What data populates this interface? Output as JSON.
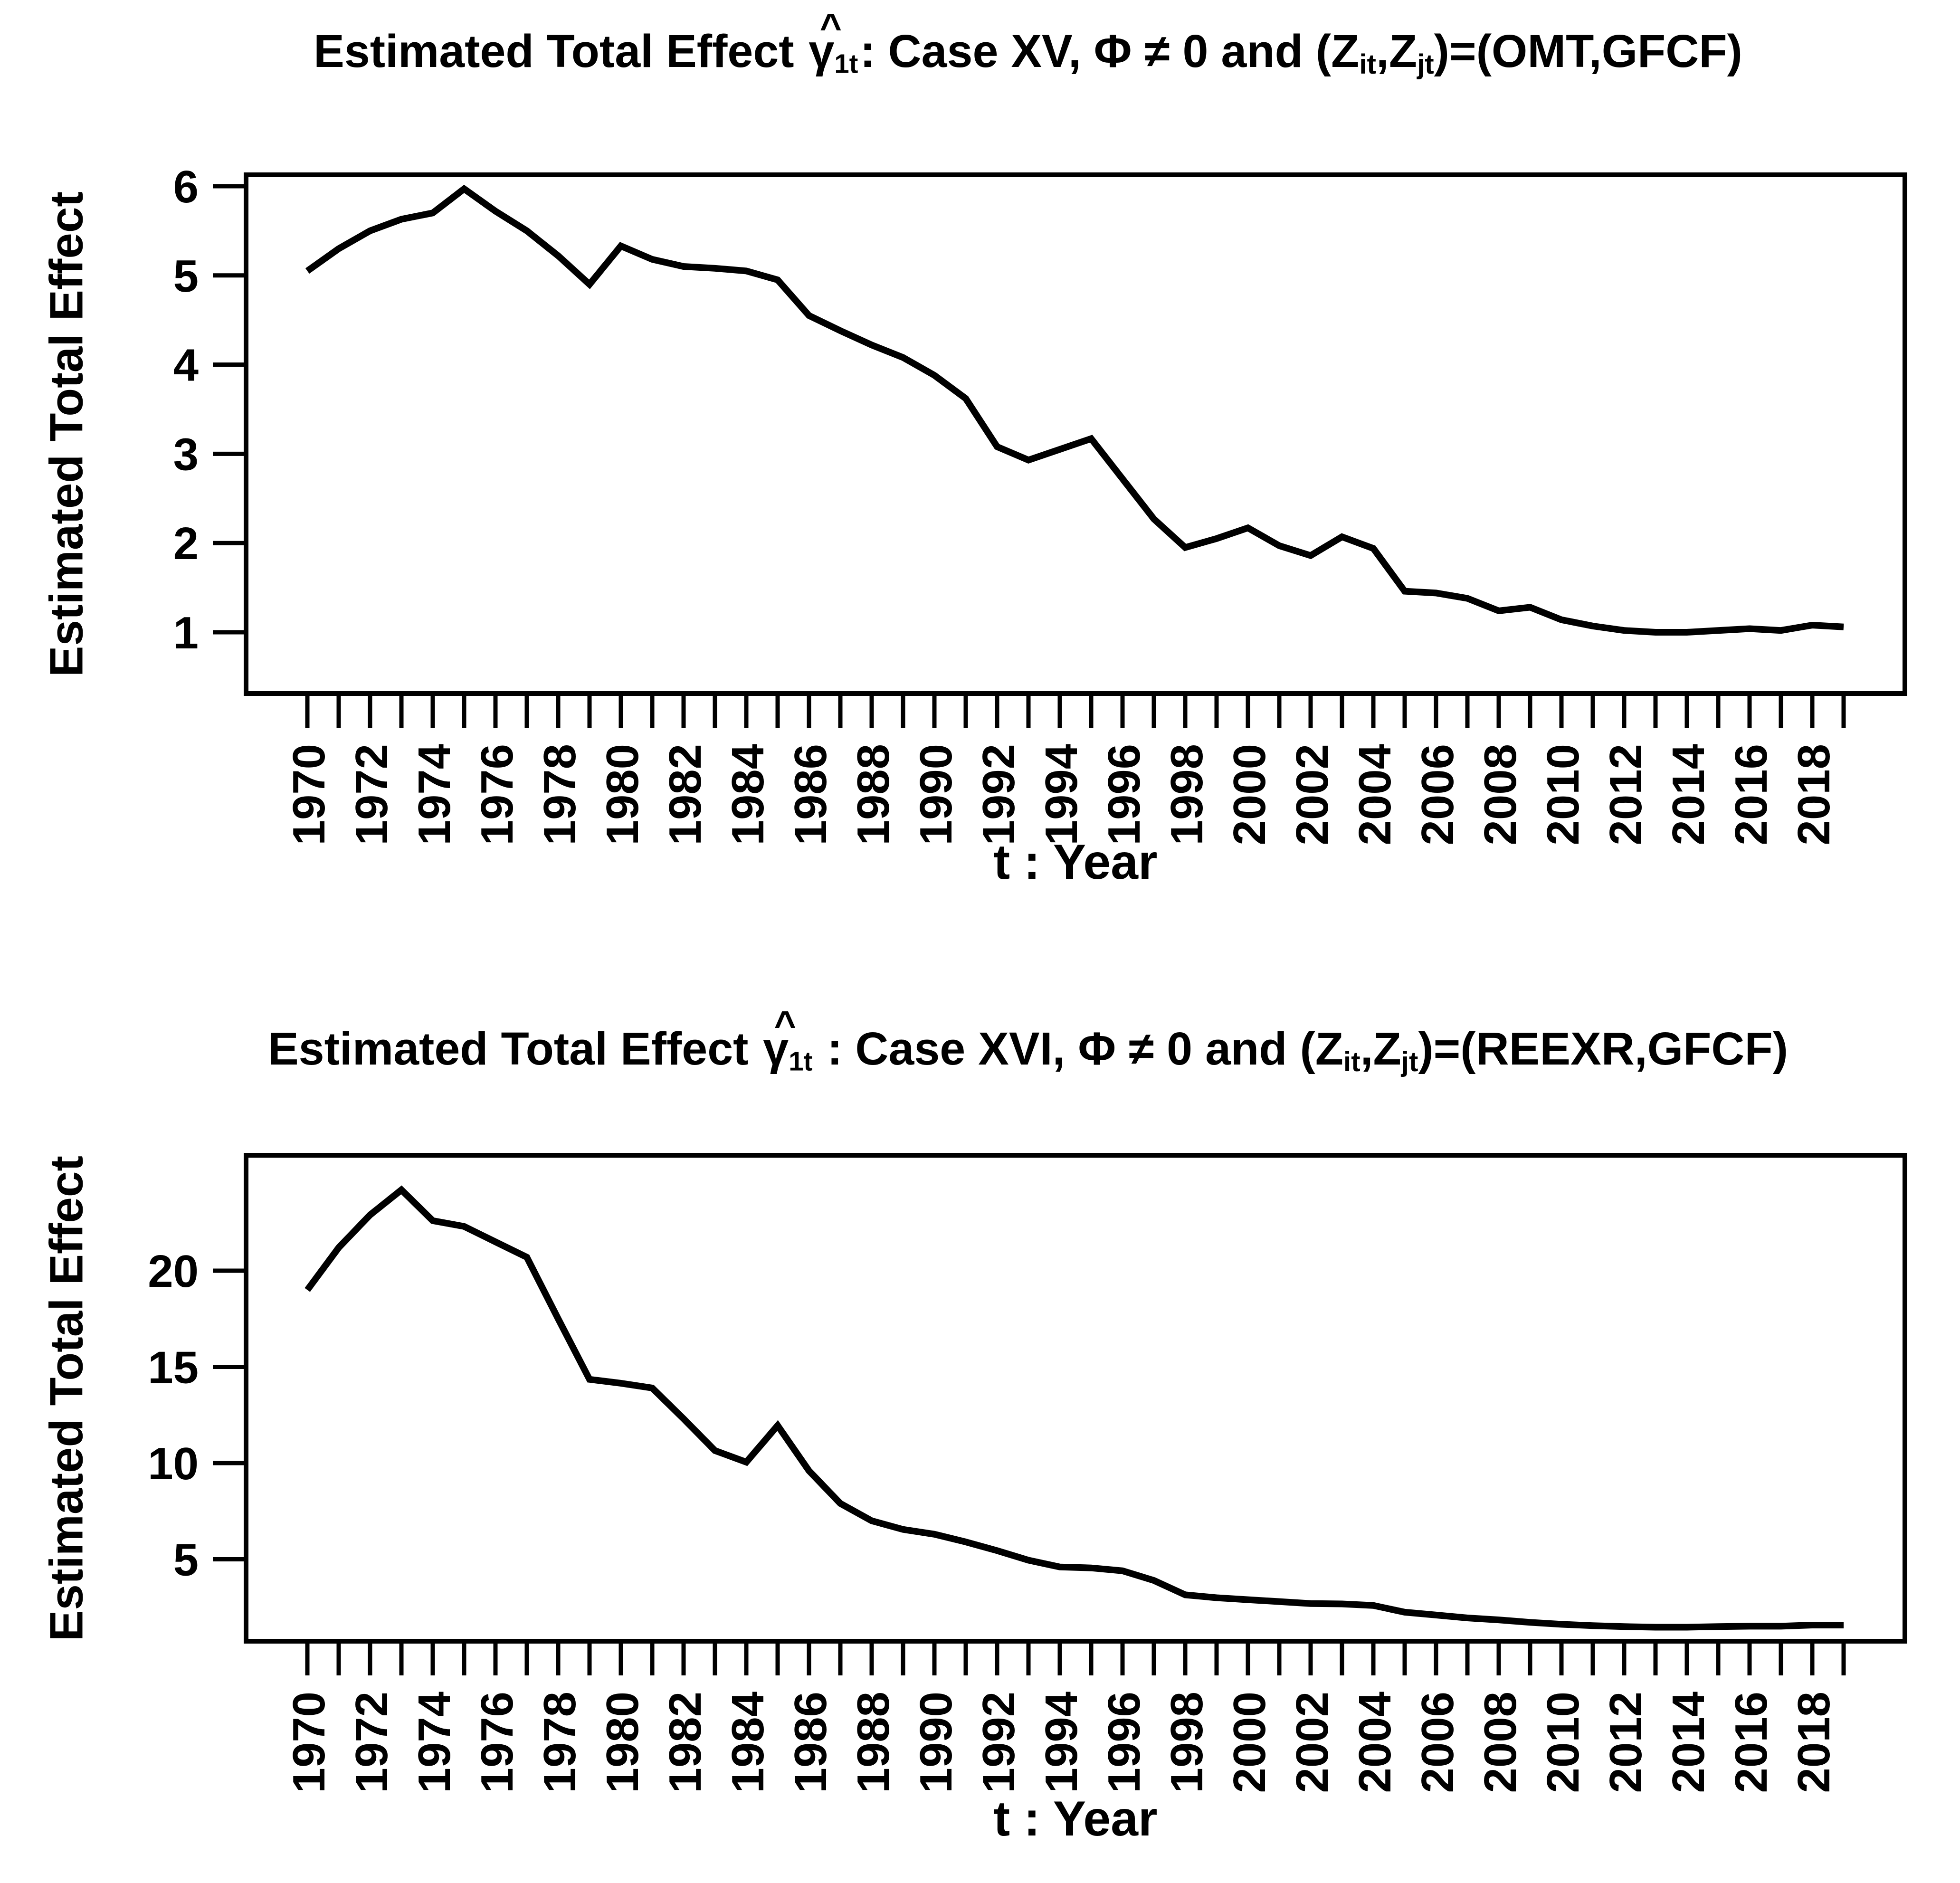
{
  "page": {
    "background": "#ffffff",
    "accent_color": "#000000"
  },
  "chart_data": [
    {
      "type": "line",
      "title": "Estimated Total Effect γ̂1t: Case XV, Φ ≠ 0 and (Zit,Zjt)=(OMT,GFCF)",
      "title_parts": {
        "prefix": "Estimated Total Effect ",
        "hat": "^",
        "gamma": "γ",
        "gamma_sub": "1t",
        "mid": ": Case XV, Φ ≠ 0 and (Z",
        "sub_i": "it",
        "z2": ",Z",
        "sub_j": "jt",
        "tail": ")=(OMT,GFCF)"
      },
      "xlabel": "t : Year",
      "ylabel": "Estimated Total Effect",
      "x": [
        1970,
        1971,
        1972,
        1973,
        1974,
        1975,
        1976,
        1977,
        1978,
        1979,
        1980,
        1981,
        1982,
        1983,
        1984,
        1985,
        1986,
        1987,
        1988,
        1989,
        1990,
        1991,
        1992,
        1993,
        1994,
        1995,
        1996,
        1997,
        1998,
        1999,
        2000,
        2001,
        2002,
        2003,
        2004,
        2005,
        2006,
        2007,
        2008,
        2009,
        2010,
        2011,
        2012,
        2013,
        2014,
        2015,
        2016,
        2017,
        2018,
        2019
      ],
      "values": [
        5.05,
        5.3,
        5.5,
        5.63,
        5.7,
        5.97,
        5.72,
        5.5,
        5.22,
        4.9,
        5.33,
        5.18,
        5.1,
        5.08,
        5.05,
        4.95,
        4.55,
        4.38,
        4.22,
        4.08,
        3.88,
        3.62,
        3.08,
        2.93,
        3.05,
        3.17,
        2.72,
        2.27,
        1.95,
        2.05,
        2.17,
        1.97,
        1.86,
        2.07,
        1.94,
        1.46,
        1.44,
        1.38,
        1.24,
        1.28,
        1.14,
        1.07,
        1.02,
        1.0,
        1.0,
        1.02,
        1.04,
        1.02,
        1.08,
        1.06
      ],
      "yticks": [
        1,
        2,
        3,
        4,
        5,
        6
      ],
      "xtick_label_years": [
        1970,
        1972,
        1974,
        1976,
        1978,
        1980,
        1982,
        1984,
        1986,
        1988,
        1990,
        1992,
        1994,
        1996,
        1998,
        2000,
        2002,
        2004,
        2006,
        2008,
        2010,
        2012,
        2014,
        2016,
        2018
      ],
      "xlim": [
        1968,
        2021
      ],
      "ylim": [
        0.3,
        6.1
      ],
      "grid": false,
      "legend": null,
      "line_color": "#000000",
      "line_width": 14
    },
    {
      "type": "line",
      "title": "Estimated Total Effect γ̂1t : Case XVI, Φ ≠ 0 and (Zit,Zjt)=(REEXR,GFCF)",
      "title_parts": {
        "prefix": "Estimated Total Effect ",
        "hat": "^",
        "gamma": "γ",
        "gamma_sub": "1t",
        "mid": " : Case XVI, Φ ≠ 0 and (Z",
        "sub_i": "it",
        "z2": ",Z",
        "sub_j": "jt",
        "tail": ")=(REEXR,GFCF)"
      },
      "xlabel": "t : Year",
      "ylabel": "Estimated Total Effect",
      "x": [
        1970,
        1971,
        1972,
        1973,
        1974,
        1975,
        1976,
        1977,
        1978,
        1979,
        1980,
        1981,
        1982,
        1983,
        1984,
        1985,
        1986,
        1987,
        1988,
        1989,
        1990,
        1991,
        1992,
        1993,
        1994,
        1995,
        1996,
        1997,
        1998,
        1999,
        2000,
        2001,
        2002,
        2003,
        2004,
        2005,
        2006,
        2007,
        2008,
        2009,
        2010,
        2011,
        2012,
        2013,
        2014,
        2015,
        2016,
        2017,
        2018,
        2019
      ],
      "values": [
        19.0,
        21.2,
        22.9,
        24.2,
        22.6,
        22.3,
        21.5,
        20.7,
        17.5,
        14.35,
        14.15,
        13.9,
        12.3,
        10.65,
        10.05,
        11.95,
        9.6,
        7.9,
        7.0,
        6.55,
        6.3,
        5.9,
        5.45,
        4.95,
        4.6,
        4.55,
        4.4,
        3.9,
        3.15,
        3.0,
        2.9,
        2.8,
        2.7,
        2.68,
        2.6,
        2.25,
        2.1,
        1.95,
        1.85,
        1.72,
        1.62,
        1.55,
        1.5,
        1.47,
        1.47,
        1.5,
        1.52,
        1.52,
        1.58,
        1.58
      ],
      "yticks": [
        5,
        10,
        15,
        20
      ],
      "xtick_label_years": [
        1970,
        1972,
        1974,
        1976,
        1978,
        1980,
        1982,
        1984,
        1986,
        1988,
        1990,
        1992,
        1994,
        1996,
        1998,
        2000,
        2002,
        2004,
        2006,
        2008,
        2010,
        2012,
        2014,
        2016,
        2018
      ],
      "xlim": [
        1968,
        2021
      ],
      "ylim": [
        0.7,
        26.0
      ],
      "grid": false,
      "legend": null,
      "line_color": "#000000",
      "line_width": 14
    }
  ]
}
